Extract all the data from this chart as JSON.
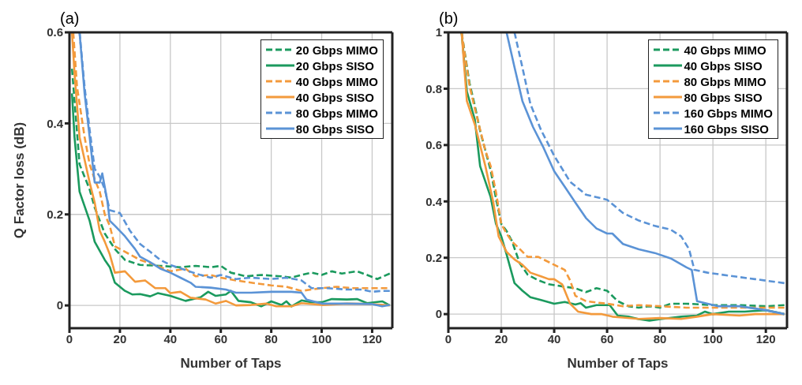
{
  "chart_data": [
    {
      "type": "line",
      "title": "(a)",
      "xlabel": "Number of Taps",
      "ylabel": "Q Factor loss (dB)",
      "xlim": [
        0,
        128
      ],
      "xticks": [
        0,
        20,
        40,
        60,
        80,
        100,
        120
      ],
      "ylim": [
        -0.05,
        0.6
      ],
      "yticks": [
        0,
        0.2,
        0.4,
        0.6
      ],
      "grid": true,
      "legend": "top right",
      "series": [
        {
          "name": "20 Gbps MIMO",
          "color": "#1b9a5e",
          "line_style": "dashed",
          "x": [
            1,
            4,
            8,
            10,
            14,
            18,
            22,
            28,
            36,
            44,
            50,
            56,
            60,
            64,
            70,
            76,
            84,
            88,
            92,
            96,
            100,
            104,
            108,
            114,
            118,
            122,
            127
          ],
          "values": [
            0.52,
            0.31,
            0.255,
            0.215,
            0.158,
            0.124,
            0.1,
            0.089,
            0.087,
            0.084,
            0.087,
            0.084,
            0.087,
            0.072,
            0.064,
            0.067,
            0.064,
            0.061,
            0.067,
            0.072,
            0.067,
            0.075,
            0.07,
            0.075,
            0.067,
            0.058,
            0.07
          ]
        },
        {
          "name": "20 Gbps SISO",
          "color": "#1b9a5e",
          "line_style": "solid",
          "x": [
            1,
            2,
            4,
            8,
            10,
            14,
            16,
            18,
            22,
            25,
            28,
            32,
            35,
            40,
            46,
            52,
            55,
            58,
            62,
            64,
            67,
            72,
            76,
            80,
            84,
            86,
            88,
            92,
            96,
            100,
            104,
            110,
            114,
            118,
            124,
            127
          ],
          "values": [
            0.466,
            0.37,
            0.25,
            0.186,
            0.14,
            0.1,
            0.084,
            0.05,
            0.032,
            0.024,
            0.025,
            0.02,
            0.027,
            0.021,
            0.01,
            0.018,
            0.03,
            0.021,
            0.024,
            0.032,
            0.01,
            0.007,
            -0.002,
            0.009,
            0.001,
            0.009,
            -0.002,
            0.011,
            0.007,
            0.007,
            0.014,
            0.013,
            0.014,
            0.005,
            0.009,
            0
          ]
        },
        {
          "name": "40 Gbps MIMO",
          "color": "#f39a3c",
          "line_style": "dashed",
          "x": [
            1.5,
            3,
            6,
            8,
            10,
            12,
            14,
            16,
            18,
            20,
            24,
            28,
            34,
            40,
            46,
            50,
            56,
            60,
            66,
            72,
            80,
            86,
            92,
            100,
            106,
            112,
            118,
            126
          ],
          "values": [
            0.6,
            0.48,
            0.37,
            0.31,
            0.277,
            0.25,
            0.2,
            0.175,
            0.13,
            0.124,
            0.112,
            0.1,
            0.089,
            0.075,
            0.081,
            0.064,
            0.067,
            0.061,
            0.055,
            0.05,
            0.044,
            0.041,
            0.032,
            0.038,
            0.041,
            0.038,
            0.038,
            0.038
          ]
        },
        {
          "name": "40 Gbps SISO",
          "color": "#f39a3c",
          "line_style": "solid",
          "x": [
            1,
            2,
            4,
            6,
            8,
            10,
            12,
            14,
            16,
            18,
            22,
            26,
            30,
            34,
            38,
            40,
            44,
            48,
            54,
            58,
            62,
            66,
            72,
            78,
            82,
            88,
            92,
            100,
            110,
            120,
            127
          ],
          "values": [
            0.6,
            0.51,
            0.37,
            0.32,
            0.27,
            0.226,
            0.164,
            0.14,
            0.112,
            0.072,
            0.075,
            0.052,
            0.055,
            0.038,
            0.038,
            0.027,
            0.03,
            0.017,
            0.013,
            0.004,
            0.01,
            0,
            0.001,
            0.004,
            -0.002,
            -0.002,
            0.005,
            0.001,
            0.004,
            0.003,
            0
          ]
        },
        {
          "name": "80 Gbps MIMO",
          "color": "#5b93d6",
          "line_style": "dashed",
          "x": [
            4,
            6,
            8,
            10,
            12,
            14,
            16,
            20,
            24,
            28,
            32,
            36,
            40,
            46,
            50,
            56,
            60,
            66,
            72,
            80,
            86,
            92,
            96,
            102,
            110,
            116,
            120,
            124,
            127
          ],
          "values": [
            0.6,
            0.48,
            0.386,
            0.3,
            0.283,
            0.255,
            0.209,
            0.203,
            0.164,
            0.135,
            0.118,
            0.1,
            0.089,
            0.078,
            0.07,
            0.061,
            0.067,
            0.058,
            0.061,
            0.058,
            0.061,
            0.055,
            0.038,
            0.038,
            0.035,
            0.035,
            0.03,
            0.032,
            0.032
          ]
        },
        {
          "name": "80 Gbps SISO",
          "color": "#5b93d6",
          "line_style": "solid",
          "x": [
            4,
            6,
            8,
            10,
            12,
            13,
            15,
            16,
            18,
            22,
            26,
            28,
            32,
            36,
            40,
            44,
            48,
            50,
            56,
            62,
            66,
            72,
            80,
            88,
            92,
            94,
            100,
            110,
            120,
            124,
            127
          ],
          "values": [
            0.6,
            0.466,
            0.37,
            0.27,
            0.27,
            0.29,
            0.23,
            0.186,
            0.175,
            0.152,
            0.124,
            0.107,
            0.095,
            0.081,
            0.072,
            0.061,
            0.05,
            0.041,
            0.039,
            0.035,
            0.028,
            0.028,
            0.03,
            0.03,
            0.028,
            0.013,
            0.004,
            0.004,
            0.003,
            -0.002,
            0.001
          ]
        }
      ]
    },
    {
      "type": "line",
      "title": "(b)",
      "xlabel": "Number of Taps",
      "xlim": [
        0,
        128
      ],
      "xticks": [
        0,
        20,
        40,
        60,
        80,
        100,
        120
      ],
      "ylim": [
        -0.05,
        1
      ],
      "yticks": [
        0,
        0.2,
        0.4,
        0.6,
        0.8,
        1
      ],
      "grid": true,
      "legend": "top right",
      "series": [
        {
          "name": "40 Gbps MIMO",
          "color": "#1b9a5e",
          "line_style": "dashed",
          "x": [
            5,
            8,
            10,
            12,
            14,
            16,
            18,
            20,
            22,
            24,
            27,
            30,
            34,
            38,
            44,
            48,
            52,
            56,
            60,
            64,
            68,
            72,
            76,
            80,
            84,
            90,
            100,
            110,
            120,
            127
          ],
          "values": [
            1,
            0.82,
            0.74,
            0.65,
            0.58,
            0.51,
            0.41,
            0.32,
            0.295,
            0.26,
            0.18,
            0.14,
            0.12,
            0.106,
            0.097,
            0.092,
            0.078,
            0.092,
            0.083,
            0.046,
            0.028,
            0.023,
            0.028,
            0.023,
            0.037,
            0.037,
            0.032,
            0.032,
            0.028,
            0.032
          ]
        },
        {
          "name": "40 Gbps SISO",
          "color": "#1b9a5e",
          "line_style": "solid",
          "x": [
            5,
            7,
            10,
            12,
            16,
            18,
            20,
            22,
            25,
            28,
            31,
            35,
            40,
            44,
            48,
            50,
            52,
            56,
            61,
            64,
            68,
            72,
            76,
            80,
            88,
            94,
            97,
            100,
            106,
            112,
            120,
            127
          ],
          "values": [
            1,
            0.79,
            0.69,
            0.525,
            0.415,
            0.32,
            0.276,
            0.212,
            0.11,
            0.083,
            0.06,
            0.05,
            0.037,
            0.043,
            0.034,
            0.039,
            0.023,
            0.032,
            0.032,
            -0.005,
            -0.009,
            -0.018,
            -0.023,
            -0.018,
            -0.009,
            -0.005,
            0.009,
            0,
            0.009,
            0.009,
            0.014,
            0
          ]
        },
        {
          "name": "80 Gbps MIMO",
          "color": "#f39a3c",
          "line_style": "dashed",
          "x": [
            5,
            8,
            10,
            14,
            16,
            18,
            20,
            22,
            24,
            26,
            30,
            34,
            40,
            44,
            46,
            48,
            52,
            56,
            60,
            66,
            72,
            80,
            90,
            100,
            110,
            120,
            127
          ],
          "values": [
            1,
            0.81,
            0.73,
            0.58,
            0.525,
            0.433,
            0.32,
            0.286,
            0.258,
            0.24,
            0.203,
            0.203,
            0.175,
            0.157,
            0.12,
            0.065,
            0.046,
            0.041,
            0.037,
            0.028,
            0.032,
            0.028,
            0.023,
            0.023,
            0.023,
            0.023,
            0.023
          ]
        },
        {
          "name": "80 Gbps SISO",
          "color": "#f39a3c",
          "line_style": "solid",
          "x": [
            5,
            7,
            10,
            14,
            17,
            19,
            22,
            25,
            28,
            31,
            35,
            38,
            40,
            43,
            46,
            49,
            54,
            58,
            62,
            66,
            72,
            80,
            88,
            94,
            100,
            110,
            116,
            127
          ],
          "values": [
            1,
            0.756,
            0.673,
            0.525,
            0.396,
            0.276,
            0.221,
            0.194,
            0.175,
            0.147,
            0.134,
            0.124,
            0.124,
            0.106,
            0.037,
            0.009,
            0,
            0,
            -0.009,
            -0.012,
            -0.017,
            -0.014,
            -0.017,
            -0.009,
            0,
            -0.005,
            0,
            0
          ]
        },
        {
          "name": "160 Gbps MIMO",
          "color": "#5b93d6",
          "line_style": "dashed",
          "x": [
            25,
            28,
            31,
            35,
            40,
            46,
            52,
            60,
            66,
            72,
            78,
            84,
            88,
            91,
            93,
            98,
            108,
            116,
            127
          ],
          "values": [
            1,
            0.875,
            0.746,
            0.654,
            0.562,
            0.47,
            0.424,
            0.406,
            0.359,
            0.332,
            0.313,
            0.3,
            0.276,
            0.23,
            0.157,
            0.147,
            0.134,
            0.124,
            0.11
          ]
        },
        {
          "name": "160 Gbps SISO",
          "color": "#5b93d6",
          "line_style": "solid",
          "x": [
            22,
            25,
            28,
            32,
            36,
            40,
            44,
            48,
            52,
            56,
            60,
            62,
            66,
            72,
            78,
            84,
            90,
            92,
            94,
            98,
            102,
            110,
            120,
            127
          ],
          "values": [
            1,
            0.876,
            0.756,
            0.664,
            0.59,
            0.507,
            0.452,
            0.396,
            0.341,
            0.304,
            0.286,
            0.286,
            0.249,
            0.23,
            0.217,
            0.198,
            0.166,
            0.157,
            0.046,
            0.037,
            0.028,
            0.028,
            0.014,
            0
          ]
        }
      ]
    }
  ]
}
